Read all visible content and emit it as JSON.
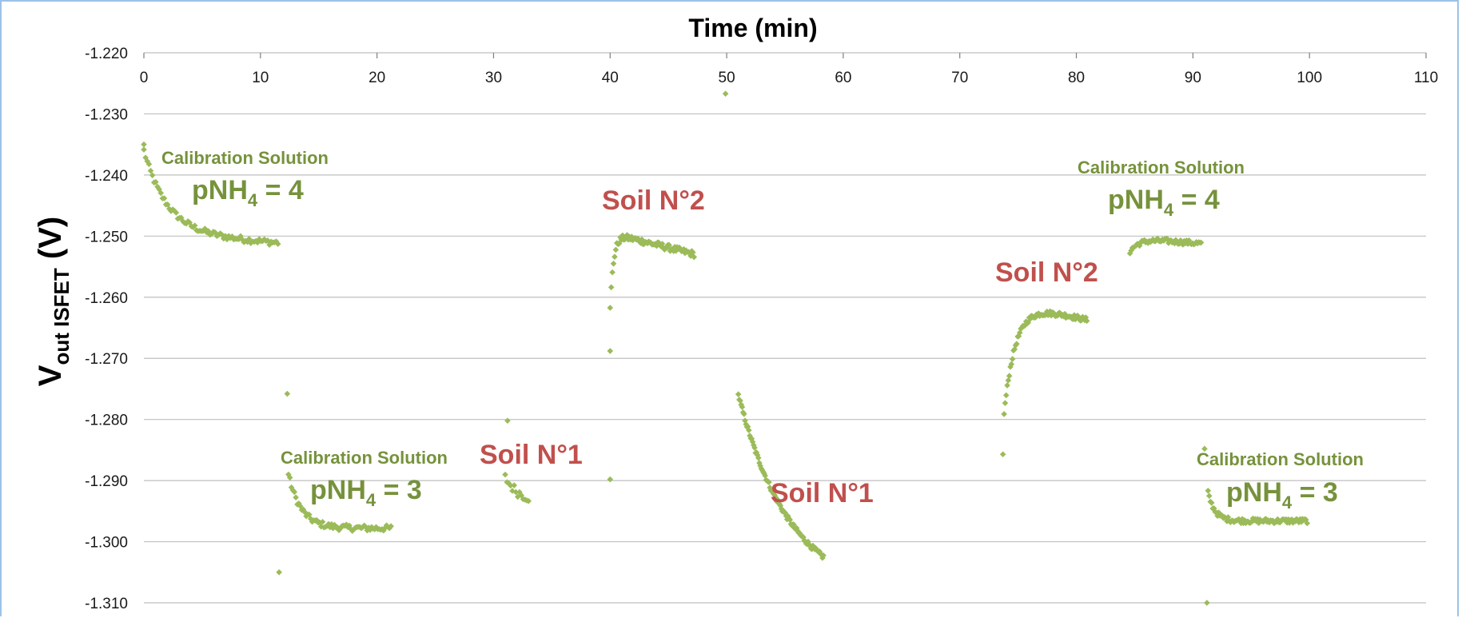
{
  "chart_data": {
    "type": "scatter",
    "x_axis_title": "Time (min)",
    "y_axis_title": {
      "main": "V",
      "subscript": "out ISFET",
      "suffix": " (V)"
    },
    "x_ticks": [
      "0",
      "10",
      "20",
      "30",
      "40",
      "50",
      "60",
      "70",
      "80",
      "90",
      "100",
      "110"
    ],
    "y_ticks": [
      "-1.220",
      "-1.230",
      "-1.240",
      "-1.250",
      "-1.260",
      "-1.270",
      "-1.280",
      "-1.290",
      "-1.300",
      "-1.310"
    ],
    "xlim": [
      0,
      110
    ],
    "ylim": [
      -1.31,
      -1.22
    ],
    "x_axis_position": "top",
    "grid": true,
    "marker_color": "#9bbb59",
    "annotations": [
      {
        "id": "cal1",
        "title": "Calibration Solution",
        "label_main": "pNH",
        "label_sub": "4",
        "label_tail": " = 4"
      },
      {
        "id": "cal2",
        "title": "Calibration Solution",
        "label_main": "pNH",
        "label_sub": "4",
        "label_tail": " = 3"
      },
      {
        "id": "soil1a",
        "text": "Soil N°1"
      },
      {
        "id": "soil2a",
        "text": "Soil N°2"
      },
      {
        "id": "soil1b",
        "text": "Soil N°1"
      },
      {
        "id": "soil2b",
        "text": "Soil N°2"
      },
      {
        "id": "cal3",
        "title": "Calibration Solution",
        "label_main": "pNH",
        "label_sub": "4",
        "label_tail": " = 4"
      },
      {
        "id": "cal4",
        "title": "Calibration Solution",
        "label_main": "pNH",
        "label_sub": "4",
        "label_tail": " = 3"
      }
    ],
    "outliers": [
      [
        0,
        -1.235
      ],
      [
        12.3,
        -1.2758
      ],
      [
        11.6,
        -1.305
      ],
      [
        31.2,
        -1.2802
      ],
      [
        40.0,
        -1.2688
      ],
      [
        40.0,
        -1.2898
      ],
      [
        49.9,
        -1.2267
      ],
      [
        73.7,
        -1.2857
      ],
      [
        91.0,
        -1.2848
      ],
      [
        91.2,
        -1.31
      ]
    ],
    "segments": [
      {
        "name": "Calibration pNH4 = 4 (1)",
        "t0": 0,
        "t1": 11.5,
        "n": 80,
        "v0": -1.236,
        "vinf": -1.2495,
        "tau": 2.0,
        "drift": -0.00014,
        "noise": 0.0005
      },
      {
        "name": "Calibration pNH4 = 3 (1)",
        "t0": 12.4,
        "t1": 21.2,
        "n": 70,
        "v0": -1.289,
        "vinf": -1.2978,
        "tau": 1.1,
        "drift": 0,
        "noise": 0.0005
      },
      {
        "name": "Soil N°1 (1)",
        "t0": 31.0,
        "t1": 33.0,
        "n": 14,
        "v0": -1.2895,
        "vinf": -1.2935,
        "tau": 1.2,
        "drift": 0,
        "noise": 0.0008
      },
      {
        "name": "Soil N°2 (1)",
        "t0": 40.0,
        "t1": 47.2,
        "n": 75,
        "v0": -1.262,
        "vinf": -1.2495,
        "tau": 0.3,
        "drift": -0.00048,
        "noise": 0.0005
      },
      {
        "name": "Soil N°1 (2)",
        "t0": 51.0,
        "t1": 58.3,
        "n": 90,
        "v0": -1.276,
        "vinf": -1.309,
        "tau": 4.5,
        "drift": 0,
        "noise": 0.0004
      },
      {
        "name": "Soil N°2 (2)",
        "t0": 73.8,
        "t1": 80.9,
        "n": 80,
        "v0": -1.279,
        "vinf": -1.2605,
        "tau": 1.0,
        "drift": -0.00045,
        "noise": 0.0004
      },
      {
        "name": "Calibration pNH4 = 4 (2)",
        "t0": 84.6,
        "t1": 90.7,
        "n": 60,
        "v0": -1.2525,
        "vinf": -1.2503,
        "tau": 0.8,
        "drift": -0.00015,
        "noise": 0.0004
      },
      {
        "name": "Calibration pNH4 = 3 (2)",
        "t0": 91.3,
        "t1": 99.8,
        "n": 85,
        "v0": -1.292,
        "vinf": -1.2966,
        "tau": 0.6,
        "drift": 0,
        "noise": 0.0004
      }
    ]
  }
}
